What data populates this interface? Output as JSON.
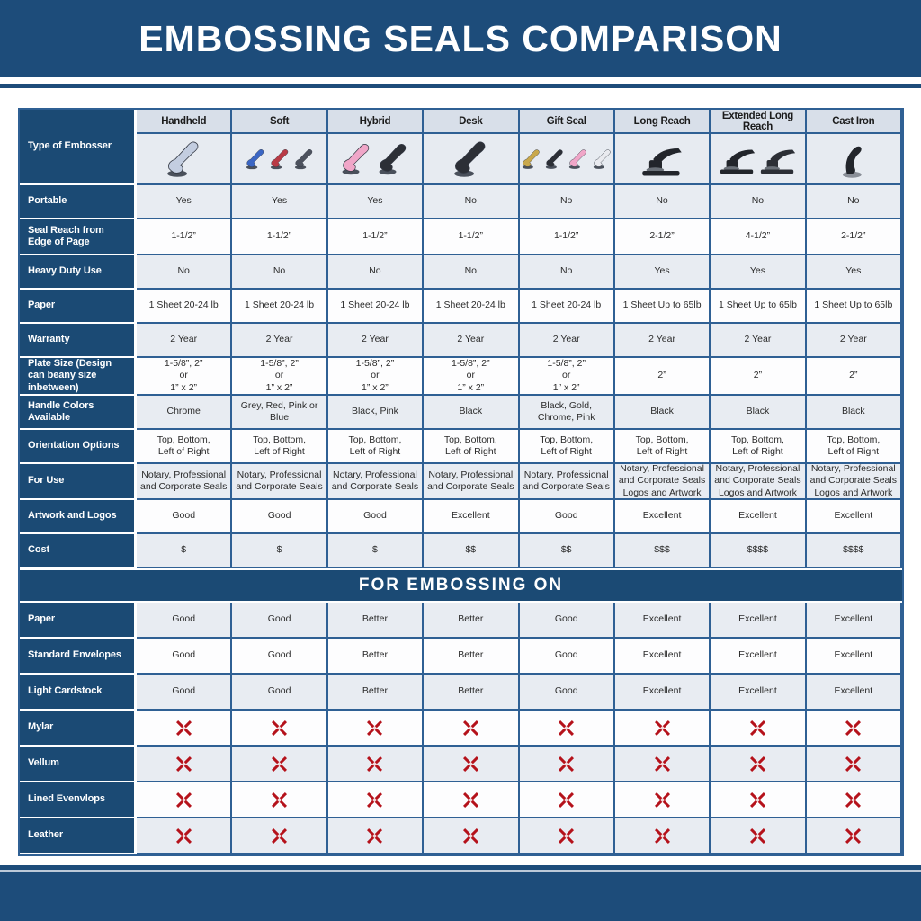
{
  "page": {
    "title": "EMBOSSING SEALS COMPARISON",
    "section_header": "FOR EMBOSSING ON"
  },
  "colors": {
    "banner_navy": "#1d4c7a",
    "label_navy": "#1b4a74",
    "grid_blue": "#2f6094",
    "header_cell_bg": "#d8dfe9",
    "row_alt_bg": "#e8ecf2",
    "row_white_bg": "#fdfdfe",
    "x_red": "#b5121b"
  },
  "table": {
    "corner_label": "Type of Embosser",
    "columns": [
      "Handheld",
      "Soft",
      "Hybrid",
      "Desk",
      "Gift Seal",
      "Long Reach",
      "Extended Long Reach",
      "Cast Iron"
    ],
    "images": [
      {
        "column": "Handheld",
        "type": "handheld",
        "colors": [
          "#c3cde0"
        ]
      },
      {
        "column": "Soft",
        "type": "handheld",
        "colors": [
          "#3b66c4",
          "#b93a45",
          "#4d525e"
        ]
      },
      {
        "column": "Hybrid",
        "type": "handheld",
        "colors": [
          "#f0a6c8",
          "#2c2f36"
        ]
      },
      {
        "column": "Desk",
        "type": "handheld",
        "colors": [
          "#2c2f36"
        ]
      },
      {
        "column": "Gift Seal",
        "type": "handheld",
        "colors": [
          "#c9a84c",
          "#2c2f36",
          "#f0a6c8",
          "#e9eaef"
        ]
      },
      {
        "column": "Long Reach",
        "type": "press",
        "colors": [
          "#22252b"
        ]
      },
      {
        "column": "Extended Long Reach",
        "type": "press",
        "colors": [
          "#22252b",
          "#2c2f36"
        ]
      },
      {
        "column": "Cast Iron",
        "type": "castiron",
        "colors": [
          "#22252b"
        ]
      }
    ],
    "spec_rows": [
      {
        "label": "Portable",
        "values": [
          "Yes",
          "Yes",
          "Yes",
          "No",
          "No",
          "No",
          "No",
          "No"
        ]
      },
      {
        "label": "Seal Reach from Edge of Page",
        "values": [
          "1-1/2”",
          "1-1/2”",
          "1-1/2”",
          "1-1/2”",
          "1-1/2”",
          "2-1/2”",
          "4-1/2”",
          "2-1/2”"
        ]
      },
      {
        "label": "Heavy Duty Use",
        "values": [
          "No",
          "No",
          "No",
          "No",
          "No",
          "Yes",
          "Yes",
          "Yes"
        ]
      },
      {
        "label": "Paper",
        "values": [
          "1 Sheet 20-24 lb",
          "1 Sheet 20-24 lb",
          "1 Sheet 20-24 lb",
          "1 Sheet 20-24 lb",
          "1 Sheet 20-24 lb",
          "1 Sheet Up to 65lb",
          "1 Sheet Up to 65lb",
          "1 Sheet Up to 65lb"
        ]
      },
      {
        "label": "Warranty",
        "values": [
          "2 Year",
          "2 Year",
          "2 Year",
          "2 Year",
          "2 Year",
          "2 Year",
          "2 Year",
          "2 Year"
        ]
      },
      {
        "label": "Plate Size (Design can beany size inbetween)",
        "values": [
          "1-5/8”, 2”\nor\n1” x 2”",
          "1-5/8”, 2”\nor\n1” x 2”",
          "1-5/8”, 2”\nor\n1” x 2”",
          "1-5/8”, 2”\nor\n1” x 2”",
          "1-5/8”, 2”\nor\n1” x 2”",
          "2”",
          "2”",
          "2”"
        ]
      },
      {
        "label": "Handle Colors Available",
        "values": [
          "Chrome",
          "Grey, Red, Pink or Blue",
          "Black, Pink",
          "Black",
          "Black, Gold, Chrome, Pink",
          "Black",
          "Black",
          "Black"
        ]
      },
      {
        "label": "Orientation Options",
        "values": [
          "Top, Bottom,\nLeft of Right",
          "Top, Bottom,\nLeft of Right",
          "Top, Bottom,\nLeft of Right",
          "Top, Bottom,\nLeft of Right",
          "Top, Bottom,\nLeft of Right",
          "Top, Bottom,\nLeft of Right",
          "Top, Bottom,\nLeft of Right",
          "Top, Bottom,\nLeft of Right"
        ]
      },
      {
        "label": "For Use",
        "values": [
          "Notary, Professional\nand Corporate Seals",
          "Notary, Professional\nand Corporate Seals",
          "Notary, Professional\nand Corporate Seals",
          "Notary, Professional\nand Corporate Seals",
          "Notary, Professional\nand Corporate Seals",
          "Notary, Professional\nand Corporate Seals\nLogos and Artwork",
          "Notary, Professional\nand Corporate Seals\nLogos and Artwork",
          "Notary, Professional\nand Corporate Seals\nLogos and Artwork"
        ]
      },
      {
        "label": "Artwork and Logos",
        "values": [
          "Good",
          "Good",
          "Good",
          "Excellent",
          "Good",
          "Excellent",
          "Excellent",
          "Excellent"
        ]
      },
      {
        "label": "Cost",
        "values": [
          "$",
          "$",
          "$",
          "$$",
          "$$",
          "$$$",
          "$$$$",
          "$$$$"
        ]
      }
    ],
    "embossing_rows": [
      {
        "label": "Paper",
        "values": [
          "Good",
          "Good",
          "Better",
          "Better",
          "Good",
          "Excellent",
          "Excellent",
          "Excellent"
        ]
      },
      {
        "label": "Standard Envelopes",
        "values": [
          "Good",
          "Good",
          "Better",
          "Better",
          "Good",
          "Excellent",
          "Excellent",
          "Excellent"
        ]
      },
      {
        "label": "Light Cardstock",
        "values": [
          "Good",
          "Good",
          "Better",
          "Better",
          "Good",
          "Excellent",
          "Excellent",
          "Excellent"
        ]
      },
      {
        "label": "Mylar",
        "values": [
          "x",
          "x",
          "x",
          "x",
          "x",
          "x",
          "x",
          "x"
        ]
      },
      {
        "label": "Vellum",
        "values": [
          "x",
          "x",
          "x",
          "x",
          "x",
          "x",
          "x",
          "x"
        ]
      },
      {
        "label": "Lined Evenvlops",
        "values": [
          "x",
          "x",
          "x",
          "x",
          "x",
          "x",
          "x",
          "x"
        ]
      },
      {
        "label": "Leather",
        "values": [
          "x",
          "x",
          "x",
          "x",
          "x",
          "x",
          "x",
          "x"
        ]
      }
    ]
  }
}
